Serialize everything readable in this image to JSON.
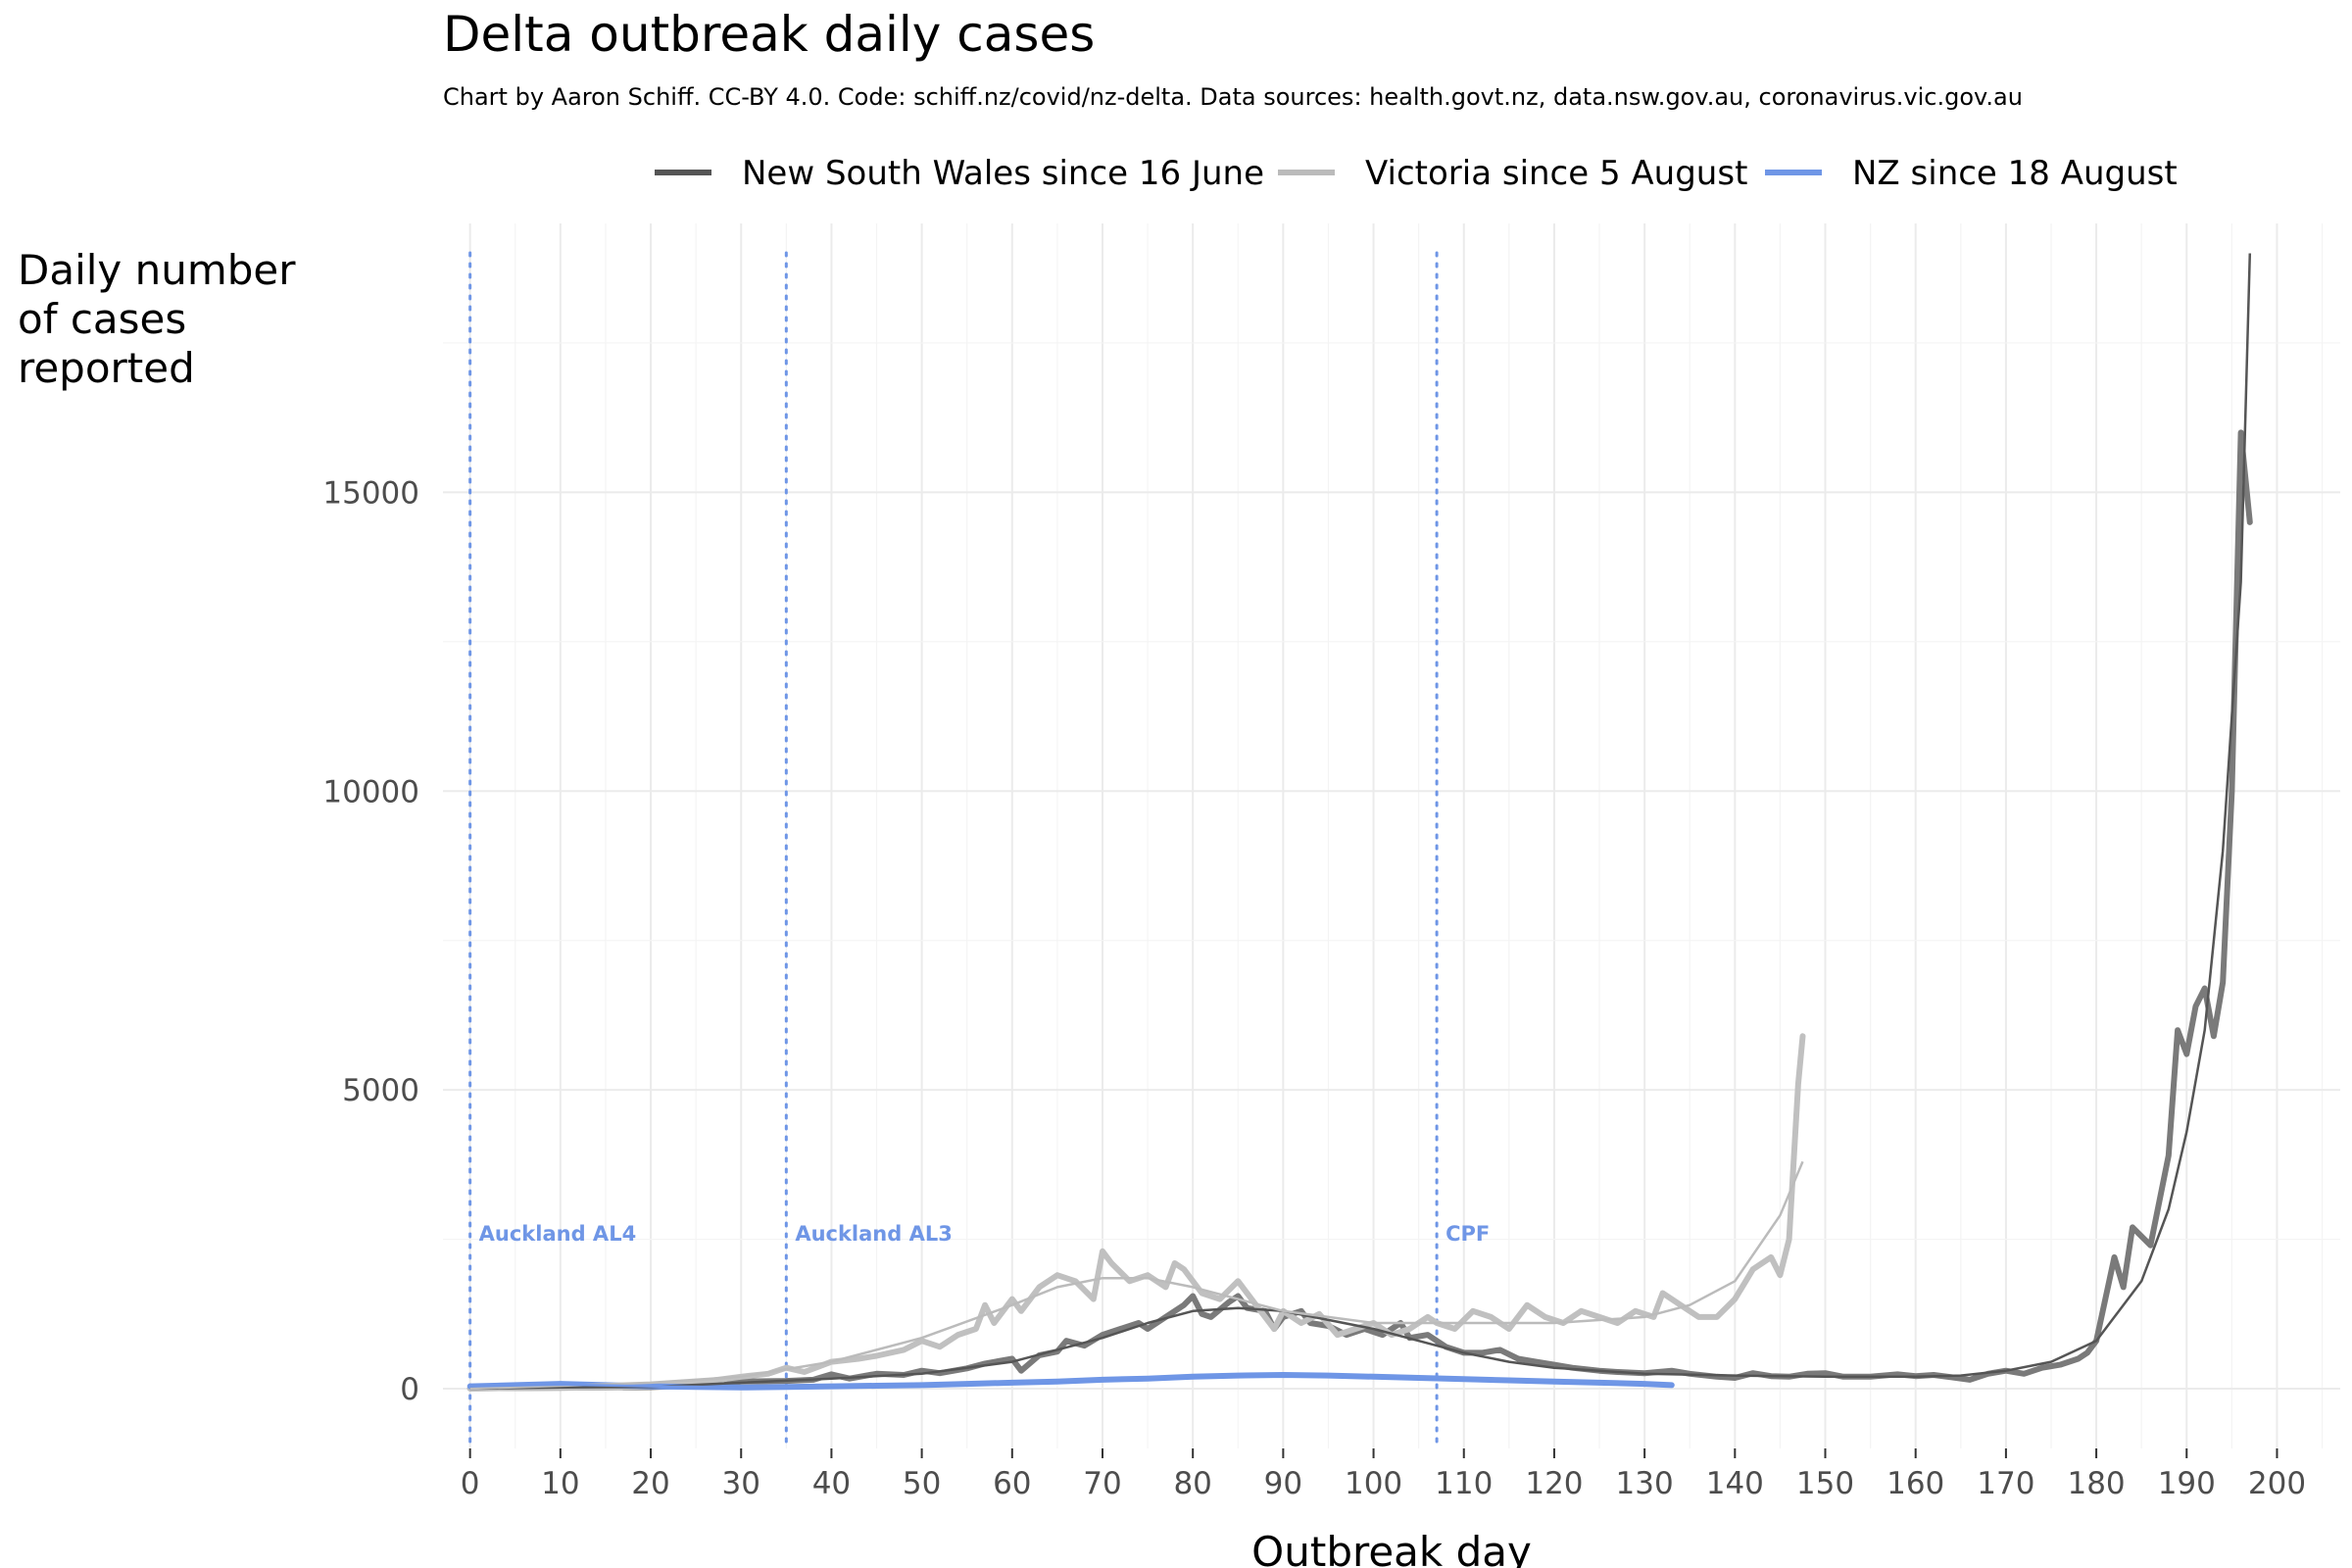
{
  "chart_data": {
    "type": "line",
    "title": "Delta outbreak daily cases",
    "subtitle": "Chart by Aaron Schiff. CC-BY 4.0. Code: schiff.nz/covid/nz-delta. Data sources: health.govt.nz, data.nsw.gov.au, coronavirus.vic.gov.au",
    "xlabel": "Outbreak day",
    "ylabel": [
      "Daily number",
      "of cases",
      "reported"
    ],
    "xlim": [
      -3,
      207
    ],
    "ylim": [
      -1000,
      19500
    ],
    "x_ticks": [
      0,
      10,
      20,
      30,
      40,
      50,
      60,
      70,
      80,
      90,
      100,
      110,
      120,
      130,
      140,
      150,
      160,
      170,
      180,
      190,
      200
    ],
    "y_ticks": [
      0,
      5000,
      10000,
      15000
    ],
    "grid": true,
    "legend_position": "top",
    "series": [
      {
        "name": "New South Wales since 16 June",
        "color": "#555555",
        "raw_color": "#7a7a7a",
        "raw_points": [
          [
            0,
            5
          ],
          [
            5,
            10
          ],
          [
            10,
            15
          ],
          [
            15,
            20
          ],
          [
            20,
            25
          ],
          [
            24,
            50
          ],
          [
            25,
            100
          ],
          [
            28,
            60
          ],
          [
            30,
            120
          ],
          [
            35,
            130
          ],
          [
            38,
            150
          ],
          [
            40,
            240
          ],
          [
            42,
            170
          ],
          [
            45,
            250
          ],
          [
            48,
            230
          ],
          [
            50,
            300
          ],
          [
            52,
            260
          ],
          [
            55,
            340
          ],
          [
            57,
            420
          ],
          [
            60,
            500
          ],
          [
            61,
            300
          ],
          [
            63,
            560
          ],
          [
            65,
            620
          ],
          [
            66,
            800
          ],
          [
            68,
            720
          ],
          [
            70,
            900
          ],
          [
            72,
            1000
          ],
          [
            74,
            1100
          ],
          [
            75,
            1000
          ],
          [
            77,
            1200
          ],
          [
            79,
            1400
          ],
          [
            80,
            1550
          ],
          [
            81,
            1250
          ],
          [
            82,
            1200
          ],
          [
            84,
            1450
          ],
          [
            85,
            1550
          ],
          [
            86,
            1350
          ],
          [
            88,
            1300
          ],
          [
            89,
            1000
          ],
          [
            90,
            1200
          ],
          [
            92,
            1300
          ],
          [
            93,
            1100
          ],
          [
            95,
            1050
          ],
          [
            97,
            900
          ],
          [
            99,
            1000
          ],
          [
            101,
            900
          ],
          [
            103,
            1100
          ],
          [
            104,
            850
          ],
          [
            106,
            900
          ],
          [
            108,
            700
          ],
          [
            110,
            600
          ],
          [
            112,
            600
          ],
          [
            114,
            650
          ],
          [
            116,
            500
          ],
          [
            118,
            450
          ],
          [
            120,
            400
          ],
          [
            122,
            350
          ],
          [
            125,
            300
          ],
          [
            127,
            280
          ],
          [
            130,
            260
          ],
          [
            133,
            300
          ],
          [
            135,
            250
          ],
          [
            138,
            200
          ],
          [
            140,
            180
          ],
          [
            142,
            260
          ],
          [
            144,
            210
          ],
          [
            146,
            200
          ],
          [
            148,
            250
          ],
          [
            150,
            260
          ],
          [
            152,
            200
          ],
          [
            155,
            200
          ],
          [
            158,
            240
          ],
          [
            160,
            210
          ],
          [
            162,
            230
          ],
          [
            164,
            190
          ],
          [
            166,
            150
          ],
          [
            168,
            250
          ],
          [
            170,
            300
          ],
          [
            172,
            250
          ],
          [
            174,
            350
          ],
          [
            176,
            400
          ],
          [
            178,
            500
          ],
          [
            179,
            600
          ],
          [
            180,
            800
          ],
          [
            181,
            1500
          ],
          [
            182,
            2200
          ],
          [
            183,
            1700
          ],
          [
            184,
            2700
          ],
          [
            186,
            2400
          ],
          [
            188,
            3900
          ],
          [
            189,
            6000
          ],
          [
            190,
            5600
          ],
          [
            191,
            6400
          ],
          [
            192,
            6700
          ],
          [
            193,
            5900
          ],
          [
            194,
            6800
          ],
          [
            195,
            10000
          ],
          [
            196,
            16000
          ],
          [
            197,
            14500
          ]
        ],
        "trend_points": [
          [
            0,
            0
          ],
          [
            10,
            20
          ],
          [
            20,
            30
          ],
          [
            30,
            100
          ],
          [
            40,
            170
          ],
          [
            50,
            250
          ],
          [
            60,
            450
          ],
          [
            70,
            850
          ],
          [
            75,
            1100
          ],
          [
            80,
            1300
          ],
          [
            85,
            1350
          ],
          [
            90,
            1300
          ],
          [
            95,
            1150
          ],
          [
            100,
            1000
          ],
          [
            105,
            800
          ],
          [
            110,
            600
          ],
          [
            115,
            450
          ],
          [
            120,
            350
          ],
          [
            130,
            250
          ],
          [
            140,
            220
          ],
          [
            150,
            200
          ],
          [
            160,
            200
          ],
          [
            165,
            220
          ],
          [
            170,
            300
          ],
          [
            175,
            450
          ],
          [
            180,
            800
          ],
          [
            185,
            1800
          ],
          [
            188,
            3000
          ],
          [
            190,
            4300
          ],
          [
            192,
            6000
          ],
          [
            194,
            9000
          ],
          [
            196,
            13500
          ],
          [
            197,
            19000
          ]
        ]
      },
      {
        "name": "Victoria since 5 August",
        "color": "#bbbbbb",
        "raw_color": "#c0c0c0",
        "raw_points": [
          [
            0,
            5
          ],
          [
            5,
            10
          ],
          [
            10,
            15
          ],
          [
            15,
            20
          ],
          [
            20,
            40
          ],
          [
            25,
            100
          ],
          [
            30,
            200
          ],
          [
            33,
            250
          ],
          [
            35,
            350
          ],
          [
            37,
            280
          ],
          [
            40,
            450
          ],
          [
            43,
            500
          ],
          [
            45,
            550
          ],
          [
            48,
            650
          ],
          [
            50,
            800
          ],
          [
            52,
            700
          ],
          [
            54,
            900
          ],
          [
            56,
            1000
          ],
          [
            57,
            1400
          ],
          [
            58,
            1100
          ],
          [
            60,
            1500
          ],
          [
            61,
            1300
          ],
          [
            63,
            1700
          ],
          [
            65,
            1900
          ],
          [
            67,
            1800
          ],
          [
            69,
            1500
          ],
          [
            70,
            2300
          ],
          [
            71,
            2100
          ],
          [
            73,
            1800
          ],
          [
            75,
            1900
          ],
          [
            77,
            1700
          ],
          [
            78,
            2100
          ],
          [
            79,
            2000
          ],
          [
            81,
            1600
          ],
          [
            83,
            1500
          ],
          [
            85,
            1800
          ],
          [
            87,
            1400
          ],
          [
            89,
            1000
          ],
          [
            90,
            1300
          ],
          [
            92,
            1100
          ],
          [
            94,
            1250
          ],
          [
            96,
            900
          ],
          [
            98,
            1000
          ],
          [
            100,
            1100
          ],
          [
            102,
            900
          ],
          [
            104,
            1000
          ],
          [
            106,
            1200
          ],
          [
            107,
            1100
          ],
          [
            109,
            1000
          ],
          [
            111,
            1300
          ],
          [
            113,
            1200
          ],
          [
            115,
            1000
          ],
          [
            117,
            1400
          ],
          [
            119,
            1200
          ],
          [
            121,
            1100
          ],
          [
            123,
            1300
          ],
          [
            125,
            1200
          ],
          [
            127,
            1100
          ],
          [
            129,
            1300
          ],
          [
            131,
            1200
          ],
          [
            132,
            1600
          ],
          [
            134,
            1400
          ],
          [
            136,
            1200
          ],
          [
            138,
            1200
          ],
          [
            140,
            1500
          ],
          [
            142,
            2000
          ],
          [
            144,
            2200
          ],
          [
            145,
            1900
          ],
          [
            146,
            2500
          ],
          [
            147,
            5100
          ],
          [
            147.5,
            5900
          ]
        ],
        "trend_points": [
          [
            0,
            0
          ],
          [
            20,
            100
          ],
          [
            30,
            200
          ],
          [
            40,
            450
          ],
          [
            50,
            850
          ],
          [
            60,
            1400
          ],
          [
            65,
            1700
          ],
          [
            70,
            1850
          ],
          [
            75,
            1850
          ],
          [
            80,
            1700
          ],
          [
            85,
            1500
          ],
          [
            90,
            1300
          ],
          [
            95,
            1200
          ],
          [
            100,
            1100
          ],
          [
            110,
            1100
          ],
          [
            120,
            1100
          ],
          [
            130,
            1200
          ],
          [
            135,
            1400
          ],
          [
            140,
            1800
          ],
          [
            145,
            2900
          ],
          [
            147.5,
            3800
          ]
        ]
      },
      {
        "name": "NZ since 18 August",
        "color": "#6f96e6",
        "raw_color": "#6f96e6",
        "raw_points": [
          [
            0,
            40
          ],
          [
            5,
            60
          ],
          [
            10,
            80
          ],
          [
            15,
            60
          ],
          [
            20,
            40
          ],
          [
            25,
            30
          ],
          [
            30,
            20
          ],
          [
            35,
            30
          ],
          [
            40,
            40
          ],
          [
            45,
            50
          ],
          [
            50,
            60
          ],
          [
            55,
            80
          ],
          [
            60,
            100
          ],
          [
            65,
            120
          ],
          [
            70,
            150
          ],
          [
            75,
            170
          ],
          [
            80,
            200
          ],
          [
            85,
            220
          ],
          [
            90,
            230
          ],
          [
            95,
            220
          ],
          [
            100,
            200
          ],
          [
            105,
            180
          ],
          [
            110,
            160
          ],
          [
            115,
            140
          ],
          [
            120,
            120
          ],
          [
            125,
            100
          ],
          [
            130,
            80
          ],
          [
            133,
            60
          ]
        ],
        "trend_points": [
          [
            0,
            40
          ],
          [
            10,
            70
          ],
          [
            20,
            40
          ],
          [
            30,
            25
          ],
          [
            40,
            40
          ],
          [
            50,
            60
          ],
          [
            60,
            100
          ],
          [
            70,
            150
          ],
          [
            80,
            200
          ],
          [
            90,
            220
          ],
          [
            100,
            200
          ],
          [
            110,
            160
          ],
          [
            120,
            120
          ],
          [
            130,
            80
          ],
          [
            133,
            60
          ]
        ]
      }
    ],
    "annotations": [
      {
        "x": 0,
        "label": "Auckland AL4",
        "color": "#6f96e6"
      },
      {
        "x": 35,
        "label": "Auckland AL3",
        "color": "#6f96e6"
      },
      {
        "x": 107,
        "label": "CPF",
        "color": "#6f96e6"
      }
    ]
  }
}
